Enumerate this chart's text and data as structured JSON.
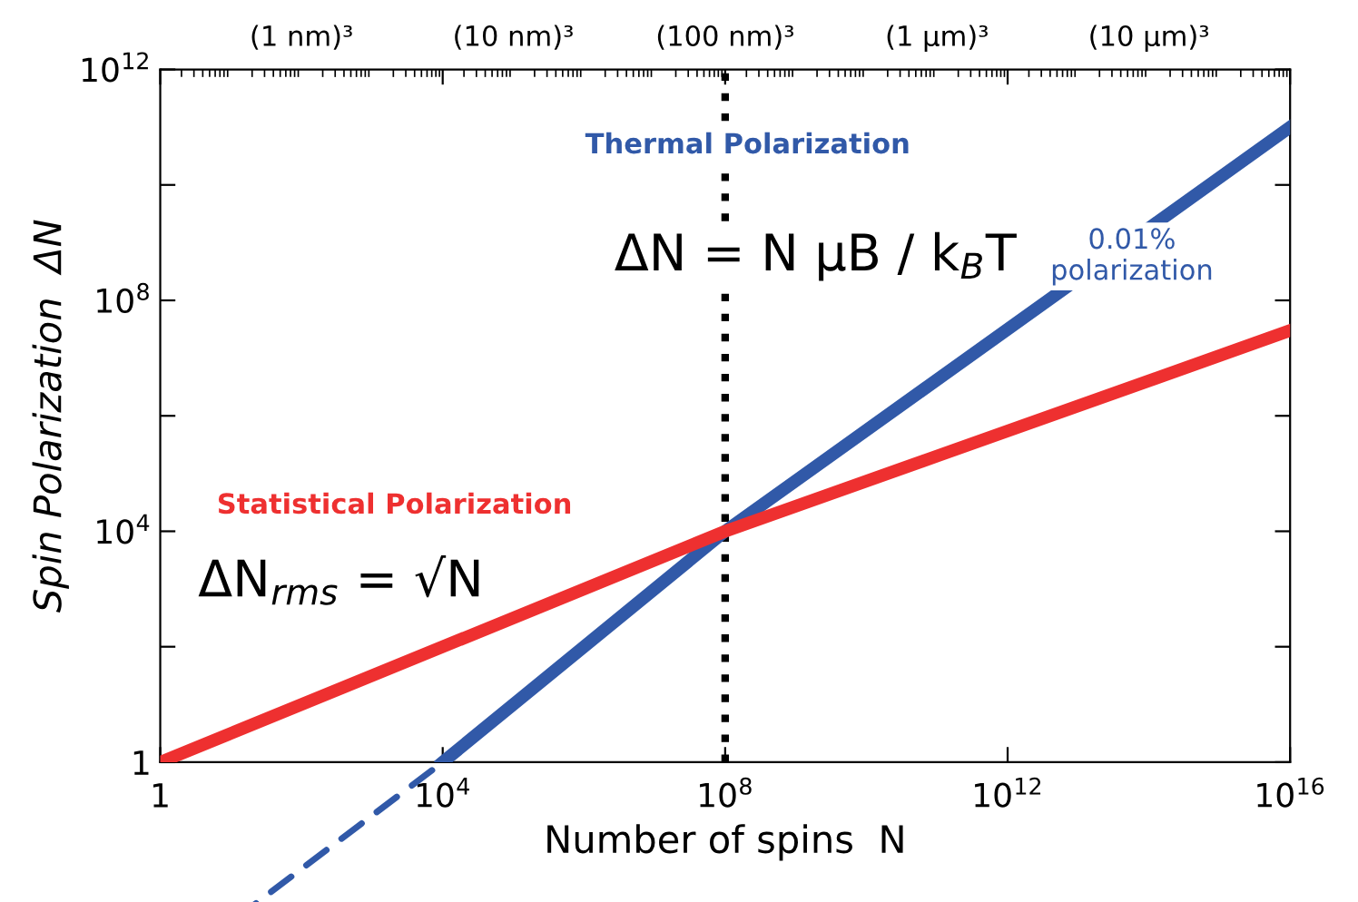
{
  "chart_data": {
    "type": "line",
    "xlabel": "Number of spins  N",
    "ylabel": "Spin Polarization  ΔN",
    "log": "xy",
    "xlim": [
      1,
      1e+16
    ],
    "ylim": [
      1,
      1000000000000.0
    ],
    "xticks": [
      {
        "value": 1,
        "label": "1"
      },
      {
        "value": 10000,
        "label": "10$^{4}$"
      },
      {
        "value": 100000000,
        "label": "10$^{8}$"
      },
      {
        "value": 1000000000000.0,
        "label": "10$^{12}$"
      },
      {
        "value": 1e+16,
        "label": "10$^{16}$"
      }
    ],
    "yticks": [
      {
        "value": 1,
        "label": "1"
      },
      {
        "value": 100,
        "label": null
      },
      {
        "value": 10000,
        "label": "10$^{4}$"
      },
      {
        "value": 1000000,
        "label": null
      },
      {
        "value": 100000000,
        "label": "10$^{8}$"
      },
      {
        "value": 10000000000.0,
        "label": null
      },
      {
        "value": 1000000000000.0,
        "label": "10$^{12}$"
      }
    ],
    "grid": false,
    "legend": false,
    "marker": "none",
    "series": [
      {
        "name": "Thermal Polarization",
        "color": "#3159a8",
        "x": [
          10000,
          100000000,
          1e+16
        ],
        "values": [
          1,
          10000,
          100000000000.0
        ],
        "line_style": "solid"
      },
      {
        "name": "Statistical Polarization",
        "color": "#ee3030",
        "x": [
          1,
          100000000,
          1e+16
        ],
        "values": [
          1,
          10000,
          30000000
        ],
        "line_style": "solid"
      }
    ],
    "ref_lines": [
      {
        "axis": "x",
        "value": 100000000,
        "color": "#000000",
        "line_style": "dotted"
      }
    ],
    "annotations": [
      "ΔN = N μB / k$_{B}$T",
      "0.01%\npolarization",
      "ΔN$_{rms}$ = √N",
      "(1 nm)³",
      "(10 nm)³",
      "(100 nm)³",
      "(1 µm)³",
      "(10 µm)³"
    ]
  }
}
